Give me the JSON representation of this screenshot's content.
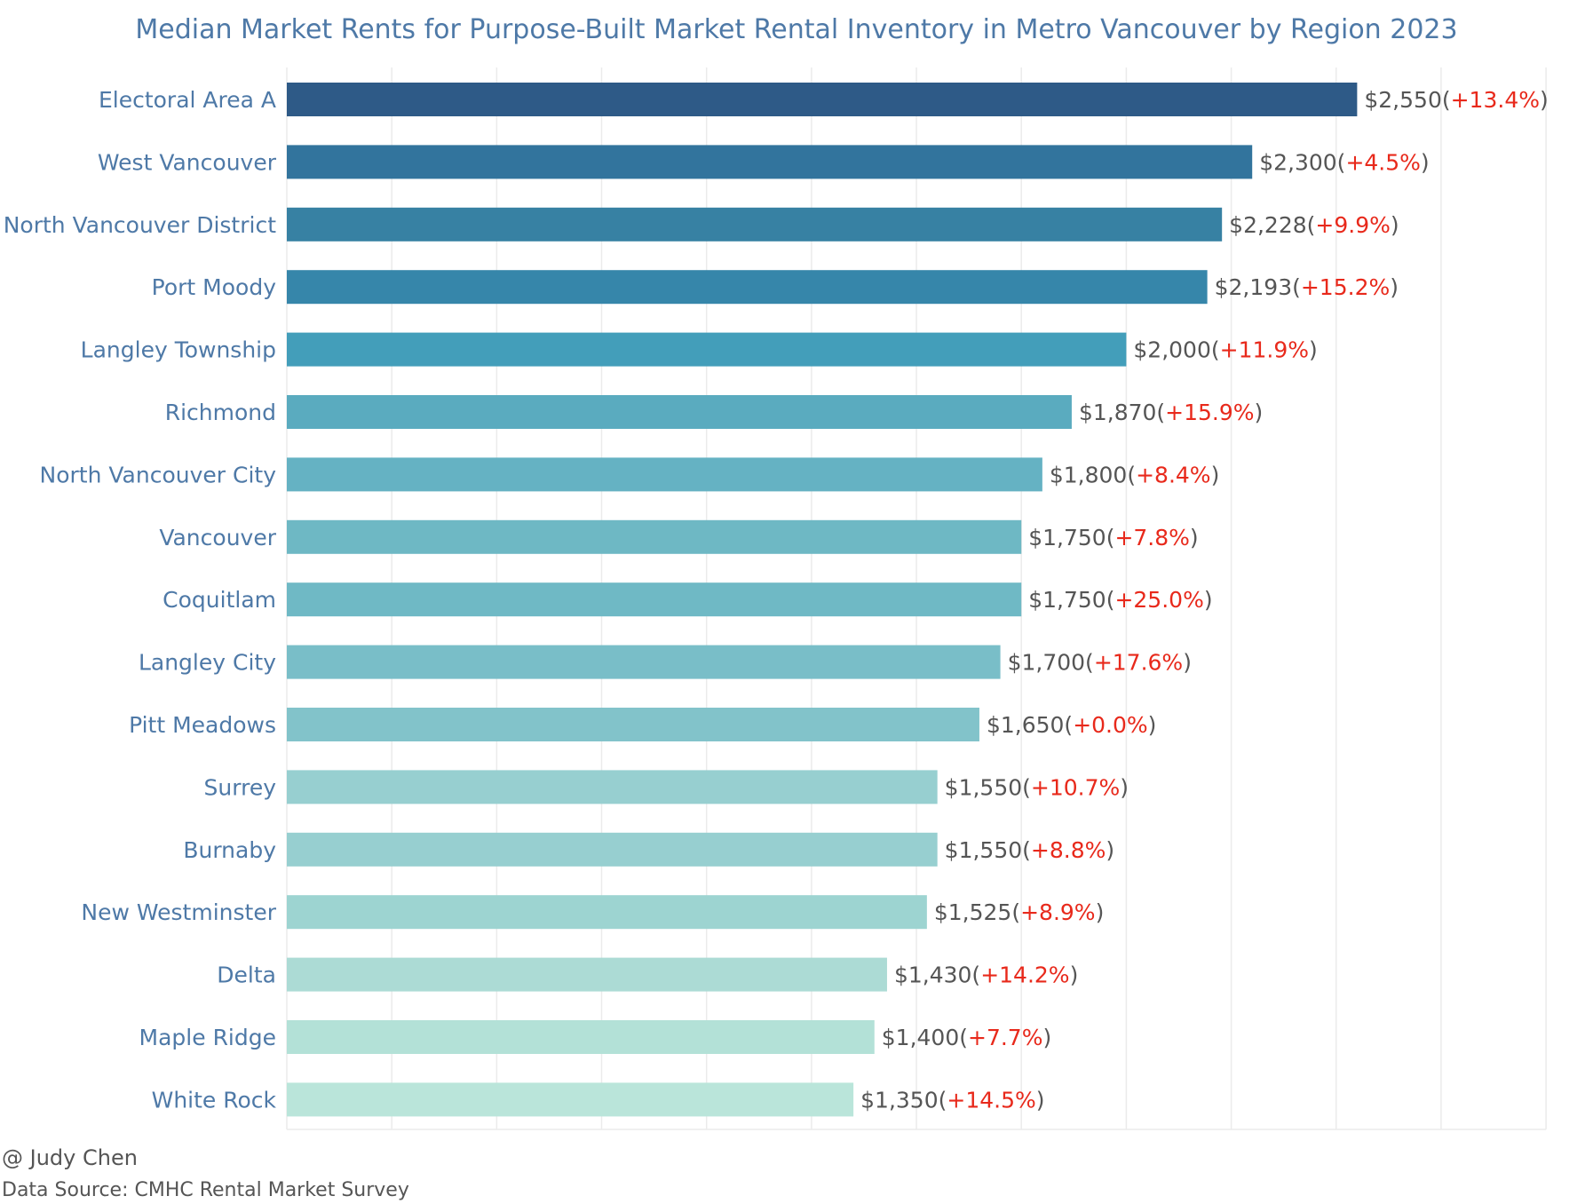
{
  "chart_data": {
    "type": "bar",
    "orientation": "horizontal",
    "title": "Median Market Rents for Purpose-Built Market Rental Inventory in Metro Vancouver by Region 2023",
    "xlim": [
      0,
      3000
    ],
    "grid": true,
    "categories": [
      "Electoral Area A",
      "West Vancouver",
      "North Vancouver District",
      "Port Moody",
      "Langley Township",
      "Richmond",
      "North Vancouver City",
      "Vancouver",
      "Coquitlam",
      "Langley City",
      "Pitt Meadows",
      "Surrey",
      "Burnaby",
      "New Westminster",
      "Delta",
      "Maple Ridge",
      "White Rock"
    ],
    "values": [
      2550,
      2300,
      2228,
      2193,
      2000,
      1870,
      1800,
      1750,
      1750,
      1700,
      1650,
      1550,
      1550,
      1525,
      1430,
      1400,
      1350
    ],
    "value_labels": [
      "$2,550",
      "$2,300",
      "$2,228",
      "$2,193",
      "$2,000",
      "$1,870",
      "$1,800",
      "$1,750",
      "$1,750",
      "$1,700",
      "$1,650",
      "$1,550",
      "$1,550",
      "$1,525",
      "$1,430",
      "$1,400",
      "$1,350"
    ],
    "change_labels": [
      "+13.4%",
      "+4.5%",
      "+9.9%",
      "+15.2%",
      "+11.9%",
      "+15.9%",
      "+8.4%",
      "+7.8%",
      "+25.0%",
      "+17.6%",
      "+0.0%",
      "+10.7%",
      "+8.8%",
      "+8.9%",
      "+14.2%",
      "+7.7%",
      "+14.5%"
    ],
    "bar_colors": [
      "#2e5a87",
      "#32749d",
      "#3781a3",
      "#3686aa",
      "#439eba",
      "#5aabbf",
      "#65b2c3",
      "#6eb8c4",
      "#6fb9c5",
      "#79bec8",
      "#82c3ca",
      "#97cfd0",
      "#97cfd0",
      "#9dd4d1",
      "#acdbd5",
      "#b3e1d7",
      "#bae5da"
    ]
  },
  "colors": {
    "title": "#4e79a7",
    "category_label": "#4e79a7",
    "value_label": "#555555",
    "change_label": "#e8291b",
    "grid": "#ebebeb"
  },
  "footer": {
    "credit": "@ Judy Chen",
    "source": "Data Source: CMHC Rental Market Survey"
  }
}
